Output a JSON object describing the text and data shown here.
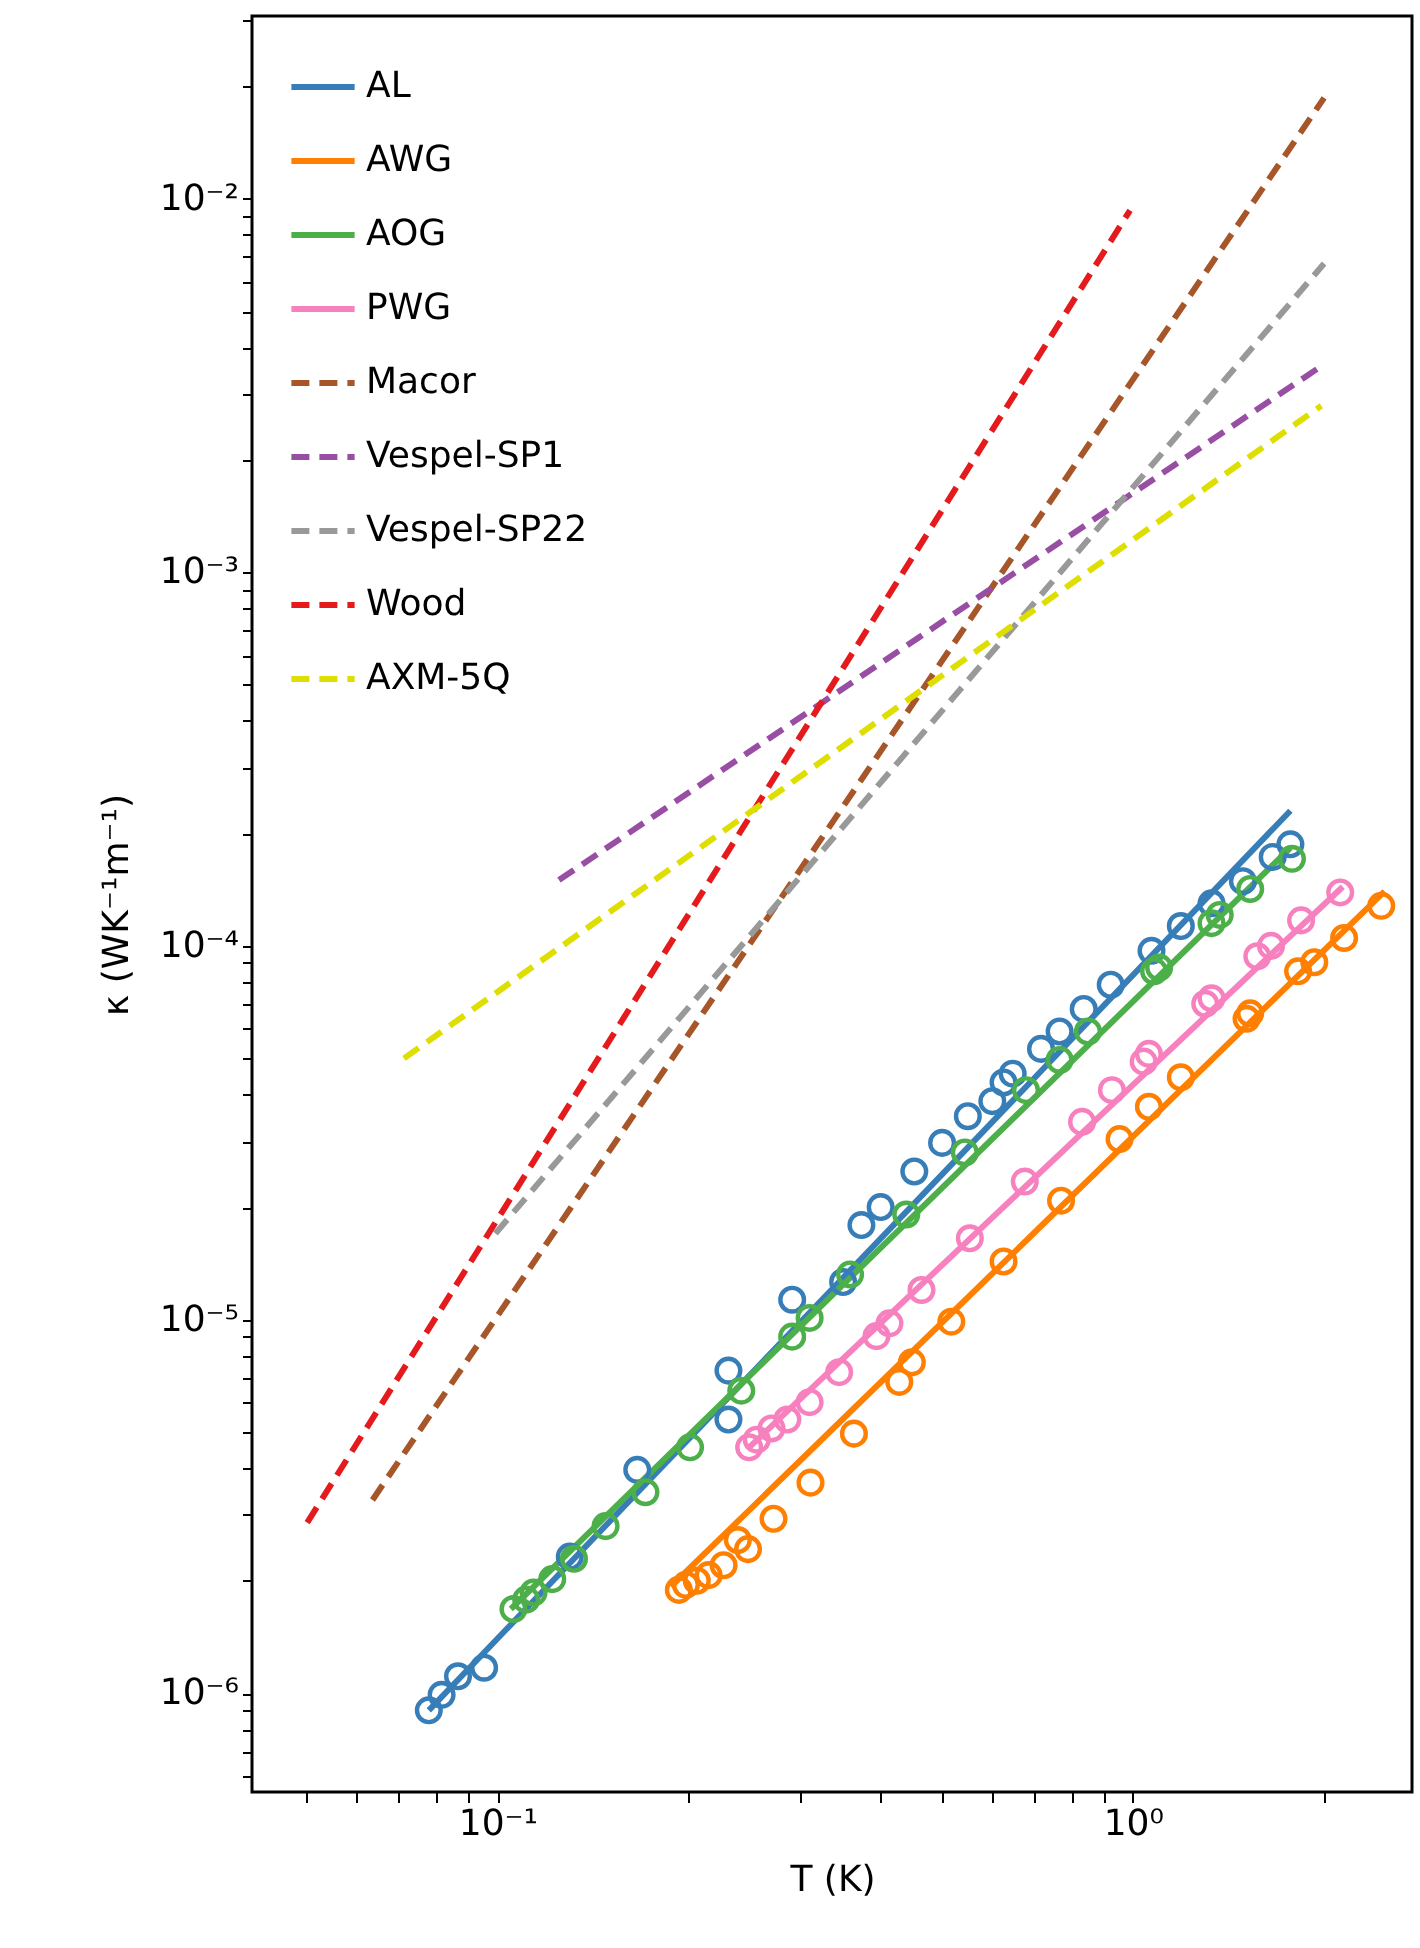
{
  "chart_data": {
    "type": "line",
    "xlabel": "T (K)",
    "ylabel": "κ (WK⁻¹m⁻¹)",
    "log": "xy",
    "grid": false,
    "legend": "top left",
    "xlim": [
      0.0411,
      2.75
    ],
    "ylim": [
      5.44e-07,
      0.0308
    ],
    "xticks": [
      {
        "value": 0.05,
        "label": null
      },
      {
        "value": 0.06,
        "label": null
      },
      {
        "value": 0.07,
        "label": null
      },
      {
        "value": 0.08,
        "label": null
      },
      {
        "value": 0.09,
        "label": null
      },
      {
        "value": 0.1,
        "label": "10⁻¹"
      },
      {
        "value": 0.2,
        "label": null
      },
      {
        "value": 0.3,
        "label": null
      },
      {
        "value": 0.4,
        "label": null
      },
      {
        "value": 0.5,
        "label": null
      },
      {
        "value": 0.6,
        "label": null
      },
      {
        "value": 0.7,
        "label": null
      },
      {
        "value": 0.8,
        "label": null
      },
      {
        "value": 0.9,
        "label": null
      },
      {
        "value": 1,
        "label": "10⁰"
      },
      {
        "value": 2,
        "label": null
      }
    ],
    "yticks": [
      {
        "value": 6e-07,
        "label": null
      },
      {
        "value": 7e-07,
        "label": null
      },
      {
        "value": 8e-07,
        "label": null
      },
      {
        "value": 9e-07,
        "label": null
      },
      {
        "value": 1e-06,
        "label": "10⁻⁶"
      },
      {
        "value": 2e-06,
        "label": null
      },
      {
        "value": 3e-06,
        "label": null
      },
      {
        "value": 4e-06,
        "label": null
      },
      {
        "value": 5e-06,
        "label": null
      },
      {
        "value": 6e-06,
        "label": null
      },
      {
        "value": 7e-06,
        "label": null
      },
      {
        "value": 8e-06,
        "label": null
      },
      {
        "value": 9e-06,
        "label": null
      },
      {
        "value": 1e-05,
        "label": "10⁻⁵"
      },
      {
        "value": 2e-05,
        "label": null
      },
      {
        "value": 3e-05,
        "label": null
      },
      {
        "value": 4e-05,
        "label": null
      },
      {
        "value": 5e-05,
        "label": null
      },
      {
        "value": 6e-05,
        "label": null
      },
      {
        "value": 7e-05,
        "label": null
      },
      {
        "value": 8e-05,
        "label": null
      },
      {
        "value": 9e-05,
        "label": null
      },
      {
        "value": 0.0001,
        "label": "10⁻⁴"
      },
      {
        "value": 0.0002,
        "label": null
      },
      {
        "value": 0.0003,
        "label": null
      },
      {
        "value": 0.0004,
        "label": null
      },
      {
        "value": 0.0005,
        "label": null
      },
      {
        "value": 0.0006,
        "label": null
      },
      {
        "value": 0.0007,
        "label": null
      },
      {
        "value": 0.0008,
        "label": null
      },
      {
        "value": 0.0009,
        "label": null
      },
      {
        "value": 0.001,
        "label": "10⁻³"
      },
      {
        "value": 0.002,
        "label": null
      },
      {
        "value": 0.003,
        "label": null
      },
      {
        "value": 0.004,
        "label": null
      },
      {
        "value": 0.005,
        "label": null
      },
      {
        "value": 0.006,
        "label": null
      },
      {
        "value": 0.007,
        "label": null
      },
      {
        "value": 0.008,
        "label": null
      },
      {
        "value": 0.009,
        "label": null
      },
      {
        "value": 0.01,
        "label": "10⁻²"
      },
      {
        "value": 0.02,
        "label": null
      },
      {
        "value": 0.03,
        "label": null
      }
    ],
    "series": [
      {
        "name": "AL",
        "line_style": "solid",
        "color": "#377eb8",
        "x": [
          0.078,
          1.77
        ],
        "values": [
          9e-07,
          0.00023
        ]
      },
      {
        "name": "AWG",
        "line_style": "solid",
        "color": "#ff7f00",
        "x": [
          0.1875,
          0.626,
          2.49
        ],
        "values": [
          1.93e-06,
          1.42e-05,
          0.00014
        ]
      },
      {
        "name": "AOG",
        "line_style": "solid",
        "color": "#4daf4a",
        "x": [
          0.105,
          1.77
        ],
        "values": [
          1.68e-06,
          0.000183
        ]
      },
      {
        "name": "PWG",
        "line_style": "solid",
        "color": "#f781bf",
        "x": [
          0.249,
          2.14
        ],
        "values": [
          4.55e-06,
          0.000144
        ]
      },
      {
        "name": "Macor",
        "line_style": "dashed",
        "color": "#a65628",
        "x": [
          0.0636,
          2.0
        ],
        "values": [
          3.29e-06,
          0.0186
        ]
      },
      {
        "name": "Vespel-SP1",
        "line_style": "dashed",
        "color": "#984ea3",
        "x": [
          0.125,
          1.95
        ],
        "values": [
          0.00015,
          0.0035
        ]
      },
      {
        "name": "Vespel-SP22",
        "line_style": "dashed",
        "color": "#999999",
        "x": [
          0.0993,
          2.0
        ],
        "values": [
          1.7e-05,
          0.0067
        ]
      },
      {
        "name": "Wood",
        "line_style": "dashed",
        "color": "#e41a1c",
        "x": [
          0.0502,
          0.99
        ],
        "values": [
          2.86e-06,
          0.0093
        ]
      },
      {
        "name": "AXM-5Q",
        "line_style": "dashed",
        "color": "#dede00",
        "x": [
          0.0713,
          1.98
        ],
        "values": [
          5e-05,
          0.00279
        ]
      },
      {
        "type": "scatter",
        "marker": "circle",
        "color": "#377eb8",
        "x": [
          0.078,
          0.0817,
          0.0867,
          0.0953,
          0.13,
          0.166,
          0.231,
          0.231,
          0.291,
          0.35,
          0.374,
          0.401,
          0.453,
          0.501,
          0.55,
          0.601,
          0.626,
          0.647,
          0.717,
          0.767,
          0.837,
          0.923,
          1.07,
          1.19,
          1.33,
          1.49,
          1.66,
          1.77
        ],
        "values": [
          9e-07,
          9.9e-07,
          1.11e-06,
          1.17e-06,
          2.32e-06,
          3.96e-06,
          7.3e-06,
          5.4e-06,
          1.13e-05,
          1.26e-05,
          1.79e-05,
          2e-05,
          2.49e-05,
          2.97e-05,
          3.5e-05,
          3.84e-05,
          4.31e-05,
          4.55e-05,
          5.3e-05,
          5.9e-05,
          6.78e-05,
          7.87e-05,
          9.7e-05,
          0.000113,
          0.00013,
          0.000149,
          0.000173,
          0.000187
        ]
      },
      {
        "type": "scatter",
        "marker": "circle",
        "color": "#ff7f00",
        "x": [
          0.193,
          0.198,
          0.206,
          0.215,
          0.227,
          0.239,
          0.248,
          0.272,
          0.311,
          0.364,
          0.429,
          0.449,
          0.518,
          0.626,
          0.771,
          0.953,
          1.06,
          1.19,
          1.51,
          1.53,
          1.82,
          1.93,
          2.15,
          2.46
        ],
        "values": [
          1.89e-06,
          1.95e-06,
          2e-06,
          2.07e-06,
          2.2e-06,
          2.57e-06,
          2.43e-06,
          2.93e-06,
          3.66e-06,
          4.95e-06,
          6.81e-06,
          7.68e-06,
          9.87e-06,
          1.43e-05,
          2.08e-05,
          3.04e-05,
          3.71e-05,
          4.45e-05,
          6.38e-05,
          6.6e-05,
          8.55e-05,
          9.04e-05,
          0.000105,
          0.000128
        ]
      },
      {
        "type": "scatter",
        "marker": "circle",
        "color": "#4daf4a",
        "x": [
          0.106,
          0.111,
          0.114,
          0.122,
          0.132,
          0.148,
          0.171,
          0.201,
          0.242,
          0.291,
          0.31,
          0.359,
          0.44,
          0.544,
          0.679,
          0.767,
          0.85,
          1.08,
          1.1,
          1.33,
          1.37,
          1.53,
          1.78
        ],
        "values": [
          1.68e-06,
          1.78e-06,
          1.86e-06,
          2.02e-06,
          2.29e-06,
          2.8e-06,
          3.45e-06,
          4.55e-06,
          6.45e-06,
          9e-06,
          1.01e-05,
          1.32e-05,
          1.91e-05,
          2.8e-05,
          4.11e-05,
          4.95e-05,
          5.9e-05,
          8.55e-05,
          8.75e-05,
          0.000115,
          0.000121,
          0.000142,
          0.000171
        ]
      },
      {
        "type": "scatter",
        "marker": "circle",
        "color": "#f781bf",
        "x": [
          0.249,
          0.256,
          0.27,
          0.286,
          0.31,
          0.345,
          0.395,
          0.414,
          0.465,
          0.554,
          0.676,
          0.832,
          0.927,
          1.04,
          1.06,
          1.3,
          1.33,
          1.57,
          1.65,
          1.84,
          2.12
        ],
        "values": [
          4.55e-06,
          4.77e-06,
          5.11e-06,
          5.4e-06,
          6.01e-06,
          7.23e-06,
          9.03e-06,
          9.77e-06,
          1.2e-05,
          1.65e-05,
          2.34e-05,
          3.38e-05,
          4.11e-05,
          4.9e-05,
          5.14e-05,
          7e-05,
          7.24e-05,
          9.38e-05,
          0.0001,
          0.000117,
          0.000139
        ]
      }
    ]
  }
}
